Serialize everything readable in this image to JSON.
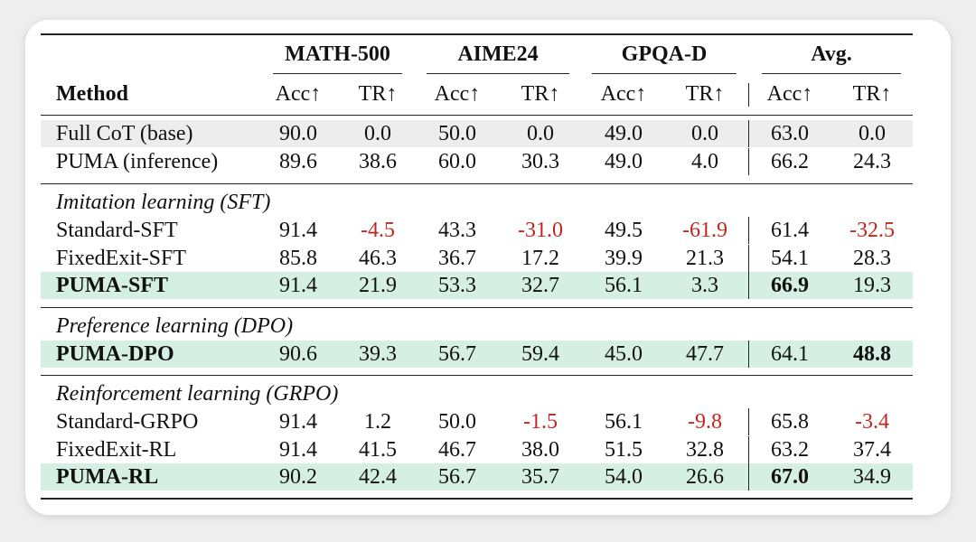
{
  "table": {
    "method_header": "Method",
    "groups": [
      "MATH-500",
      "AIME24",
      "GPQA-D",
      "Avg."
    ],
    "metric_headers": [
      "Acc↑",
      "TR↑",
      "Acc↑",
      "TR↑",
      "Acc↑",
      "TR↑",
      "Acc↑",
      "TR↑"
    ],
    "negative_color": "#c0271e",
    "highlight_colors": {
      "gray": "#ededed",
      "green": "#d5efe3"
    },
    "base_rows": [
      {
        "method": "Full CoT (base)",
        "cells": [
          "90.0",
          "0.0",
          "50.0",
          "0.0",
          "49.0",
          "0.0",
          "63.0",
          "0.0"
        ],
        "highlight": "gray"
      },
      {
        "method": "PUMA (inference)",
        "cells": [
          "89.6",
          "38.6",
          "60.0",
          "30.3",
          "49.0",
          "4.0",
          "66.2",
          "24.3"
        ]
      }
    ],
    "sections": [
      {
        "title": "Imitation learning (SFT)",
        "rows": [
          {
            "method": "Standard-SFT",
            "cells": [
              "91.4",
              "-4.5",
              "43.3",
              "-31.0",
              "49.5",
              "-61.9",
              "61.4",
              "-32.5"
            ]
          },
          {
            "method": "FixedExit-SFT",
            "cells": [
              "85.8",
              "46.3",
              "36.7",
              "17.2",
              "39.9",
              "21.3",
              "54.1",
              "28.3"
            ]
          },
          {
            "method": "PUMA-SFT",
            "cells": [
              "91.4",
              "21.9",
              "53.3",
              "32.7",
              "56.1",
              "3.3",
              "66.9",
              "19.3"
            ],
            "highlight": "green",
            "bold_method": true,
            "bold_cells": [
              6
            ]
          }
        ]
      },
      {
        "title": "Preference learning (DPO)",
        "rows": [
          {
            "method": "PUMA-DPO",
            "cells": [
              "90.6",
              "39.3",
              "56.7",
              "59.4",
              "45.0",
              "47.7",
              "64.1",
              "48.8"
            ],
            "highlight": "green",
            "bold_method": true,
            "bold_cells": [
              7
            ]
          }
        ]
      },
      {
        "title": "Reinforcement learning (GRPO)",
        "rows": [
          {
            "method": "Standard-GRPO",
            "cells": [
              "91.4",
              "1.2",
              "50.0",
              "-1.5",
              "56.1",
              "-9.8",
              "65.8",
              "-3.4"
            ]
          },
          {
            "method": "FixedExit-RL",
            "cells": [
              "91.4",
              "41.5",
              "46.7",
              "38.0",
              "51.5",
              "32.8",
              "63.2",
              "37.4"
            ]
          },
          {
            "method": "PUMA-RL",
            "cells": [
              "90.2",
              "42.4",
              "56.7",
              "35.7",
              "54.0",
              "26.6",
              "67.0",
              "34.9"
            ],
            "highlight": "green",
            "bold_method": true,
            "bold_cells": [
              6
            ]
          }
        ]
      }
    ]
  }
}
